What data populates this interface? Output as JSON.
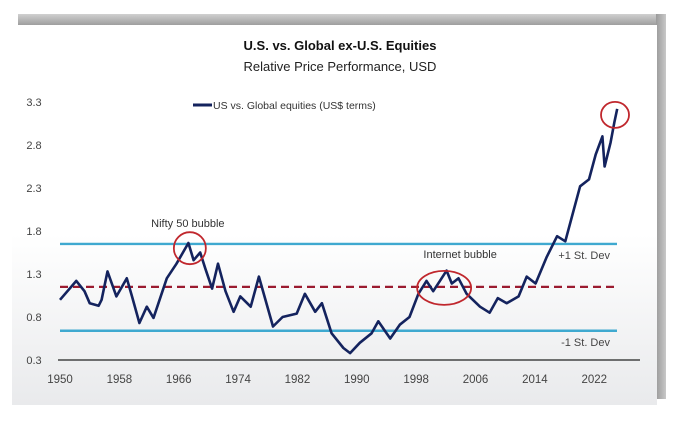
{
  "chart_data": {
    "type": "line",
    "title": "U.S. vs. Global ex-U.S. Equities",
    "subtitle": "Relative Price Performance, USD",
    "xlabel": "",
    "ylabel": "",
    "xlim": [
      1950,
      2026
    ],
    "ylim": [
      0.3,
      3.3
    ],
    "x_ticks": [
      "1950",
      "1958",
      "1966",
      "1974",
      "1982",
      "1990",
      "1998",
      "2006",
      "2014",
      "2022"
    ],
    "y_ticks": [
      "0.3",
      "0.8",
      "1.3",
      "1.8",
      "2.3",
      "2.8",
      "3.3"
    ],
    "grid": false,
    "legend_placement": "top-center",
    "colors": {
      "series": "#14235e",
      "std_lines": "#3fa9d0",
      "mean_line": "#9b1b30",
      "circles": "#c0272d",
      "text": "#333333"
    },
    "series": [
      {
        "name": "US vs. Global equities (US$ terms)",
        "x": [
          1950.0,
          1952.2,
          1953.3,
          1954.0,
          1955.2,
          1955.6,
          1956.4,
          1957.6,
          1959.0,
          1959.7,
          1960.7,
          1961.7,
          1962.6,
          1964.4,
          1965.7,
          1967.3,
          1968.0,
          1968.9,
          1969.6,
          1970.5,
          1971.3,
          1972.3,
          1973.4,
          1974.3,
          1975.7,
          1976.8,
          1978.7,
          1980.0,
          1981.9,
          1983.0,
          1984.4,
          1985.3,
          1986.6,
          1988.2,
          1989.1,
          1990.4,
          1992.0,
          1992.9,
          1994.5,
          1995.8,
          1997.1,
          1998.3,
          1999.4,
          2000.3,
          2001.2,
          2002.1,
          2002.8,
          2003.7,
          2004.8,
          2006.6,
          2007.9,
          2009.0,
          2010.2,
          2011.8,
          2012.9,
          2014.1,
          2015.6,
          2017.0,
          2018.1,
          2019.0,
          2020.1,
          2021.3,
          2022.2,
          2023.1,
          2023.4,
          2024.2,
          2024.7,
          2025.1
        ],
        "y": [
          1.0,
          1.22,
          1.1,
          0.96,
          0.93,
          1.0,
          1.33,
          1.04,
          1.25,
          1.04,
          0.73,
          0.92,
          0.79,
          1.25,
          1.42,
          1.66,
          1.46,
          1.55,
          1.36,
          1.13,
          1.42,
          1.1,
          0.86,
          1.04,
          0.92,
          1.27,
          0.69,
          0.8,
          0.84,
          1.07,
          0.86,
          0.96,
          0.61,
          0.44,
          0.38,
          0.5,
          0.61,
          0.75,
          0.55,
          0.71,
          0.8,
          1.07,
          1.22,
          1.1,
          1.22,
          1.34,
          1.19,
          1.25,
          1.07,
          0.92,
          0.85,
          1.02,
          0.96,
          1.04,
          1.27,
          1.19,
          1.5,
          1.74,
          1.68,
          1.97,
          2.32,
          2.4,
          2.69,
          2.9,
          2.55,
          2.83,
          3.06,
          3.22
        ]
      }
    ],
    "reference_lines": [
      {
        "label": "+1 St. Dev",
        "y": 1.65,
        "style": "solid"
      },
      {
        "label": "",
        "y": 1.15,
        "style": "dashed"
      },
      {
        "label": "-1 St. Dev",
        "y": 0.64,
        "style": "solid"
      }
    ],
    "annotations": [
      {
        "text": "Nifty 50 bubble",
        "x": 1967.5,
        "y": 1.6
      },
      {
        "text": "Internet bubble",
        "x": 2001.5,
        "y": 1.15
      },
      {
        "text": "",
        "x": 2024.8,
        "y": 3.15
      }
    ]
  }
}
